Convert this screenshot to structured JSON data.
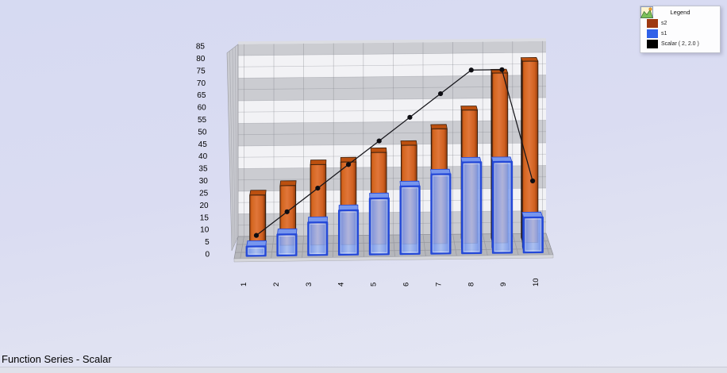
{
  "title": "Function Series - Scalar",
  "legend": {
    "title": "Legend",
    "items": [
      {
        "label": "s2",
        "swatch": "#9e3911",
        "icon": "bar-series-icon"
      },
      {
        "label": "s1",
        "swatch": "#3061e8",
        "icon": "bar-series-icon"
      },
      {
        "label": "Scalar ( 2, 2.0 )",
        "swatch": "#000000",
        "icon": "function-series-icon"
      }
    ]
  },
  "chart_data": {
    "type": "bar",
    "projection": "3d",
    "title": "Function Series - Scalar",
    "categories": [
      "1",
      "2",
      "3",
      "4",
      "5",
      "6",
      "7",
      "8",
      "9",
      "10"
    ],
    "series": [
      {
        "name": "s2",
        "type": "bar",
        "color": "#c65a24",
        "values": [
          22,
          26,
          35,
          36,
          40,
          43,
          50,
          58,
          74,
          79
        ]
      },
      {
        "name": "s1",
        "type": "bar",
        "color": "#5b86f0",
        "values": [
          4,
          9,
          14,
          19,
          24,
          29,
          34,
          39,
          39,
          15
        ]
      },
      {
        "name": "Scalar ( 2, 2.0 )",
        "type": "line",
        "color": "#000000",
        "values": [
          8,
          18,
          28,
          38,
          48,
          58,
          68,
          78,
          78,
          30
        ]
      }
    ],
    "xlabel": "",
    "ylabel": "",
    "ylim": [
      0,
      85
    ],
    "ytick_step": 5,
    "grid": true,
    "legend_position": "top-right",
    "colors": {
      "wall_band_light": "#f2f2f5",
      "wall_band_dark": "#cbccd1",
      "floor": "#b5b6bb",
      "background": "#d9dcf2"
    }
  }
}
